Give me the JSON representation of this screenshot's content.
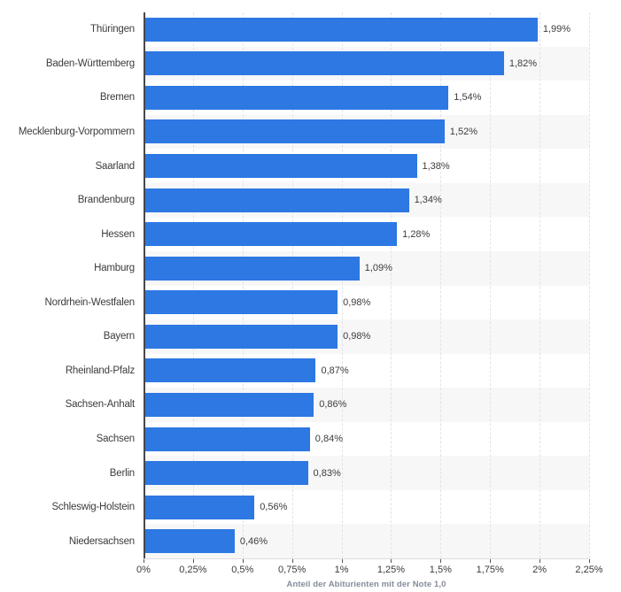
{
  "chart_data": {
    "type": "bar",
    "orientation": "horizontal",
    "categories": [
      "Thüringen",
      "Baden-Württemberg",
      "Bremen",
      "Mecklenburg-Vorpommern",
      "Saarland",
      "Brandenburg",
      "Hessen",
      "Hamburg",
      "Nordrhein-Westfalen",
      "Bayern",
      "Rheinland-Pfalz",
      "Sachsen-Anhalt",
      "Sachsen",
      "Berlin",
      "Schleswig-Holstein",
      "Niedersachsen"
    ],
    "values": [
      1.99,
      1.82,
      1.54,
      1.52,
      1.38,
      1.34,
      1.28,
      1.09,
      0.98,
      0.98,
      0.87,
      0.86,
      0.84,
      0.83,
      0.56,
      0.46
    ],
    "value_labels": [
      "1,99%",
      "1,82%",
      "1,54%",
      "1,52%",
      "1,38%",
      "1,34%",
      "1,28%",
      "1,09%",
      "0,98%",
      "0,98%",
      "0,87%",
      "0,86%",
      "0,84%",
      "0,83%",
      "0,56%",
      "0,46%"
    ],
    "x_ticks": [
      "0%",
      "0,25%",
      "0,5%",
      "0,75%",
      "1%",
      "1,25%",
      "1,5%",
      "1,75%",
      "2%",
      "2,25%"
    ],
    "xlim": [
      0,
      2.25
    ],
    "xlabel": "Anteil der Abiturienten mit der Note 1,0",
    "grid": true,
    "legend": "none",
    "colors": {
      "bar": "#2d78e3",
      "stripe": "#f7f7f8",
      "gridline": "#e2e2e9",
      "axis_line": "#48484c",
      "text": "#3c3c3c",
      "axis_title": "#868c9c"
    }
  }
}
